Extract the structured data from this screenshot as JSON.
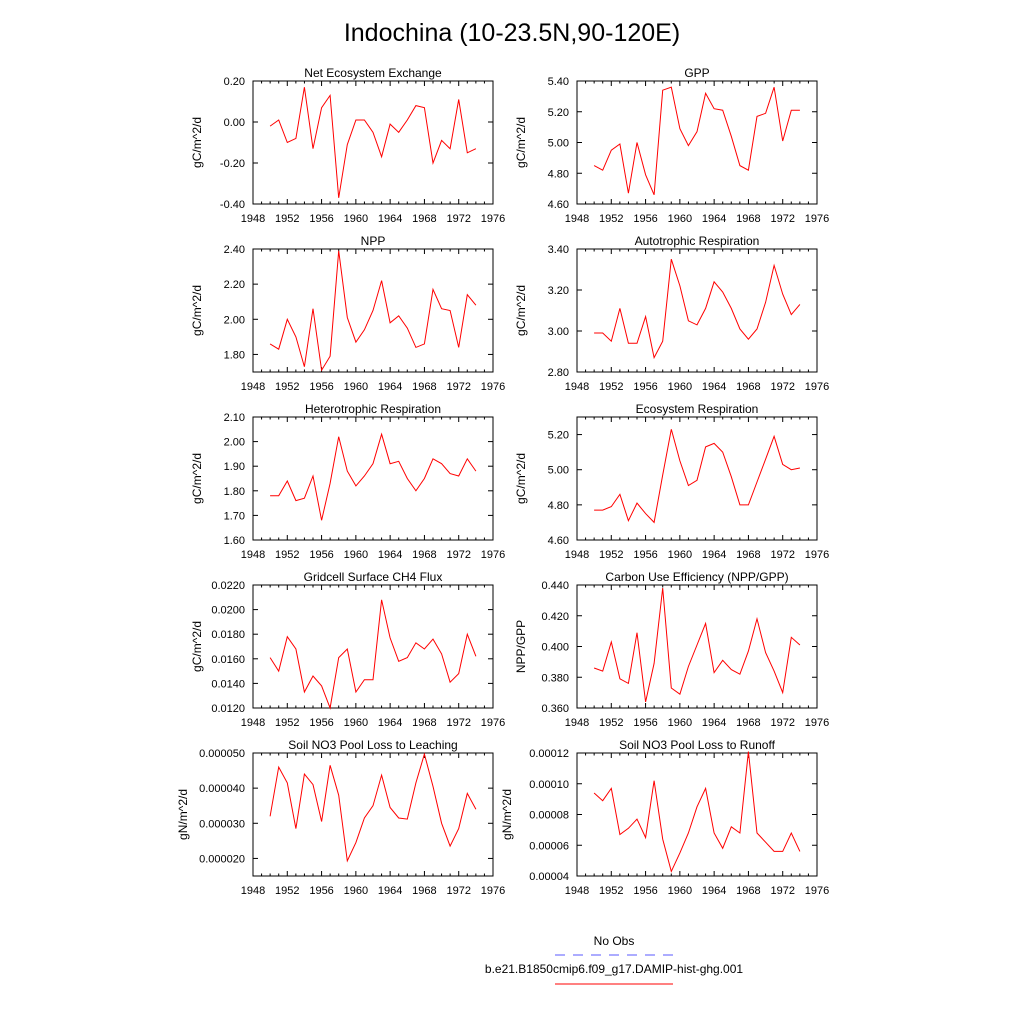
{
  "page": {
    "title": "Indochina (10-23.5N,90-120E)",
    "line_color": "#ff0000",
    "obs_line_color": "#5a5aff",
    "axis_color": "#000000"
  },
  "legend": {
    "items": [
      {
        "label": "No Obs",
        "style": "dashed",
        "color": "#5a5aff"
      },
      {
        "label": "b.e21.B1850cmip6.f09_g17.DAMIP-hist-ghg.001",
        "style": "solid",
        "color": "#ff0000"
      }
    ]
  },
  "chart_data": [
    {
      "type": "line",
      "title": "Net Ecosystem Exchange",
      "ylabel": "gC/m^2/d",
      "xlim": [
        1948,
        1976
      ],
      "xticks": [
        "1948",
        "1952",
        "1956",
        "1960",
        "1964",
        "1968",
        "1972",
        "1976"
      ],
      "ylim": [
        -0.4,
        0.2
      ],
      "yticks": [
        "0.20",
        "0.00",
        "-0.20",
        "-0.40"
      ],
      "ytick_values": [
        0.2,
        0.0,
        -0.2,
        -0.4
      ],
      "x": [
        1950,
        1951,
        1952,
        1953,
        1954,
        1955,
        1956,
        1957,
        1958,
        1959,
        1960,
        1961,
        1962,
        1963,
        1964,
        1965,
        1966,
        1967,
        1968,
        1969,
        1970,
        1971,
        1972,
        1973,
        1974
      ],
      "y": [
        -0.02,
        0.01,
        -0.1,
        -0.08,
        0.17,
        -0.13,
        0.07,
        0.13,
        -0.37,
        -0.11,
        0.01,
        0.01,
        -0.05,
        -0.17,
        -0.01,
        -0.05,
        0.01,
        0.08,
        0.07,
        -0.2,
        -0.09,
        -0.13,
        0.11,
        -0.15,
        -0.13
      ]
    },
    {
      "type": "line",
      "title": "GPP",
      "ylabel": "gC/m^2/d",
      "xlim": [
        1948,
        1976
      ],
      "xticks": [
        "1948",
        "1952",
        "1956",
        "1960",
        "1964",
        "1968",
        "1972",
        "1976"
      ],
      "ylim": [
        4.6,
        5.4
      ],
      "yticks": [
        "5.40",
        "5.20",
        "5.00",
        "4.80",
        "4.60"
      ],
      "ytick_values": [
        5.4,
        5.2,
        5.0,
        4.8,
        4.6
      ],
      "x": [
        1950,
        1951,
        1952,
        1953,
        1954,
        1955,
        1956,
        1957,
        1958,
        1959,
        1960,
        1961,
        1962,
        1963,
        1964,
        1965,
        1966,
        1967,
        1968,
        1969,
        1970,
        1971,
        1972,
        1973,
        1974
      ],
      "y": [
        4.85,
        4.82,
        4.95,
        4.99,
        4.67,
        5.0,
        4.79,
        4.66,
        5.34,
        5.36,
        5.09,
        4.98,
        5.07,
        5.32,
        5.22,
        5.21,
        5.04,
        4.85,
        4.82,
        5.17,
        5.19,
        5.36,
        5.01,
        5.21,
        5.21
      ]
    },
    {
      "type": "line",
      "title": "NPP",
      "ylabel": "gC/m^2/d",
      "xlim": [
        1948,
        1976
      ],
      "xticks": [
        "1948",
        "1952",
        "1956",
        "1960",
        "1964",
        "1968",
        "1972",
        "1976"
      ],
      "ylim": [
        1.7,
        2.4
      ],
      "yticks": [
        "2.40",
        "2.20",
        "2.00",
        "1.80"
      ],
      "ytick_values": [
        2.4,
        2.2,
        2.0,
        1.8
      ],
      "x": [
        1950,
        1951,
        1952,
        1953,
        1954,
        1955,
        1956,
        1957,
        1958,
        1959,
        1960,
        1961,
        1962,
        1963,
        1964,
        1965,
        1966,
        1967,
        1968,
        1969,
        1970,
        1971,
        1972,
        1973,
        1974
      ],
      "y": [
        1.86,
        1.83,
        2.0,
        1.9,
        1.73,
        2.06,
        1.71,
        1.79,
        2.39,
        2.01,
        1.87,
        1.94,
        2.05,
        2.22,
        1.98,
        2.02,
        1.95,
        1.84,
        1.86,
        2.17,
        2.06,
        2.05,
        1.84,
        2.14,
        2.08
      ]
    },
    {
      "type": "line",
      "title": "Autotrophic Respiration",
      "ylabel": "gC/m^2/d",
      "xlim": [
        1948,
        1976
      ],
      "xticks": [
        "1948",
        "1952",
        "1956",
        "1960",
        "1964",
        "1968",
        "1972",
        "1976"
      ],
      "ylim": [
        2.8,
        3.4
      ],
      "yticks": [
        "3.40",
        "3.20",
        "3.00",
        "2.80"
      ],
      "ytick_values": [
        3.4,
        3.2,
        3.0,
        2.8
      ],
      "x": [
        1950,
        1951,
        1952,
        1953,
        1954,
        1955,
        1956,
        1957,
        1958,
        1959,
        1960,
        1961,
        1962,
        1963,
        1964,
        1965,
        1966,
        1967,
        1968,
        1969,
        1970,
        1971,
        1972,
        1973,
        1974
      ],
      "y": [
        2.99,
        2.99,
        2.95,
        3.11,
        2.94,
        2.94,
        3.07,
        2.87,
        2.95,
        3.35,
        3.22,
        3.05,
        3.03,
        3.11,
        3.24,
        3.19,
        3.11,
        3.01,
        2.96,
        3.01,
        3.14,
        3.32,
        3.18,
        3.08,
        3.13
      ]
    },
    {
      "type": "line",
      "title": "Heterotrophic Respiration",
      "ylabel": "gC/m^2/d",
      "xlim": [
        1948,
        1976
      ],
      "xticks": [
        "1948",
        "1952",
        "1956",
        "1960",
        "1964",
        "1968",
        "1972",
        "1976"
      ],
      "ylim": [
        1.6,
        2.1
      ],
      "yticks": [
        "2.10",
        "2.00",
        "1.90",
        "1.80",
        "1.70",
        "1.60"
      ],
      "ytick_values": [
        2.1,
        2.0,
        1.9,
        1.8,
        1.7,
        1.6
      ],
      "x": [
        1950,
        1951,
        1952,
        1953,
        1954,
        1955,
        1956,
        1957,
        1958,
        1959,
        1960,
        1961,
        1962,
        1963,
        1964,
        1965,
        1966,
        1967,
        1968,
        1969,
        1970,
        1971,
        1972,
        1973,
        1974
      ],
      "y": [
        1.78,
        1.78,
        1.84,
        1.76,
        1.77,
        1.86,
        1.68,
        1.83,
        2.02,
        1.88,
        1.82,
        1.86,
        1.91,
        2.03,
        1.91,
        1.92,
        1.85,
        1.8,
        1.85,
        1.93,
        1.91,
        1.87,
        1.86,
        1.93,
        1.88
      ]
    },
    {
      "type": "line",
      "title": "Ecosystem Respiration",
      "ylabel": "gC/m^2/d",
      "xlim": [
        1948,
        1976
      ],
      "xticks": [
        "1948",
        "1952",
        "1956",
        "1960",
        "1964",
        "1968",
        "1972",
        "1976"
      ],
      "ylim": [
        4.6,
        5.3
      ],
      "yticks": [
        "5.20",
        "5.00",
        "4.80",
        "4.60"
      ],
      "ytick_values": [
        5.2,
        5.0,
        4.8,
        4.6
      ],
      "x": [
        1950,
        1951,
        1952,
        1953,
        1954,
        1955,
        1956,
        1957,
        1958,
        1959,
        1960,
        1961,
        1962,
        1963,
        1964,
        1965,
        1966,
        1967,
        1968,
        1969,
        1970,
        1971,
        1972,
        1973,
        1974
      ],
      "y": [
        4.77,
        4.77,
        4.79,
        4.86,
        4.71,
        4.81,
        4.75,
        4.7,
        4.97,
        5.23,
        5.05,
        4.91,
        4.94,
        5.13,
        5.15,
        5.1,
        4.96,
        4.8,
        4.8,
        4.93,
        5.06,
        5.19,
        5.03,
        5.0,
        5.01
      ]
    },
    {
      "type": "line",
      "title": "Gridcell Surface CH4 Flux",
      "ylabel": "gC/m^2/d",
      "xlim": [
        1948,
        1976
      ],
      "xticks": [
        "1948",
        "1952",
        "1956",
        "1960",
        "1964",
        "1968",
        "1972",
        "1976"
      ],
      "ylim": [
        0.012,
        0.022
      ],
      "yticks": [
        "0.0220",
        "0.0200",
        "0.0180",
        "0.0160",
        "0.0140",
        "0.0120"
      ],
      "ytick_values": [
        0.022,
        0.02,
        0.018,
        0.016,
        0.014,
        0.012
      ],
      "x": [
        1950,
        1951,
        1952,
        1953,
        1954,
        1955,
        1956,
        1957,
        1958,
        1959,
        1960,
        1961,
        1962,
        1963,
        1964,
        1965,
        1966,
        1967,
        1968,
        1969,
        1970,
        1971,
        1972,
        1973,
        1974
      ],
      "y": [
        0.0161,
        0.015,
        0.0178,
        0.0168,
        0.0133,
        0.0146,
        0.0138,
        0.012,
        0.0161,
        0.0168,
        0.0133,
        0.0143,
        0.0143,
        0.0208,
        0.0177,
        0.0158,
        0.0161,
        0.0173,
        0.0168,
        0.0176,
        0.0164,
        0.0141,
        0.0148,
        0.018,
        0.0162
      ]
    },
    {
      "type": "line",
      "title": "Carbon Use Efficiency (NPP/GPP)",
      "ylabel": "NPP/GPP",
      "xlim": [
        1948,
        1976
      ],
      "xticks": [
        "1948",
        "1952",
        "1956",
        "1960",
        "1964",
        "1968",
        "1972",
        "1976"
      ],
      "ylim": [
        0.36,
        0.44
      ],
      "yticks": [
        "0.440",
        "0.420",
        "0.400",
        "0.380",
        "0.360"
      ],
      "ytick_values": [
        0.44,
        0.42,
        0.4,
        0.38,
        0.36
      ],
      "x": [
        1950,
        1951,
        1952,
        1953,
        1954,
        1955,
        1956,
        1957,
        1958,
        1959,
        1960,
        1961,
        1962,
        1963,
        1964,
        1965,
        1966,
        1967,
        1968,
        1969,
        1970,
        1971,
        1972,
        1973,
        1974
      ],
      "y": [
        0.386,
        0.384,
        0.403,
        0.379,
        0.376,
        0.409,
        0.364,
        0.389,
        0.438,
        0.373,
        0.369,
        0.387,
        0.401,
        0.415,
        0.383,
        0.391,
        0.385,
        0.382,
        0.397,
        0.418,
        0.396,
        0.384,
        0.37,
        0.406,
        0.401
      ]
    },
    {
      "type": "line",
      "title": "Soil NO3 Pool Loss to Leaching",
      "ylabel": "gN/m^2/d",
      "xlim": [
        1948,
        1976
      ],
      "xticks": [
        "1948",
        "1952",
        "1956",
        "1960",
        "1964",
        "1968",
        "1972",
        "1976"
      ],
      "ylim": [
        1.5e-05,
        5e-05
      ],
      "yticks": [
        "0.000050",
        "0.000040",
        "0.000030",
        "0.000020"
      ],
      "ytick_values": [
        5e-05,
        4e-05,
        3e-05,
        2e-05
      ],
      "x": [
        1950,
        1951,
        1952,
        1953,
        1954,
        1955,
        1956,
        1957,
        1958,
        1959,
        1960,
        1961,
        1962,
        1963,
        1964,
        1965,
        1966,
        1967,
        1968,
        1969,
        1970,
        1971,
        1972,
        1973,
        1974
      ],
      "y": [
        3.2e-05,
        4.6e-05,
        4.15e-05,
        2.85e-05,
        4.4e-05,
        4.1e-05,
        3.05e-05,
        4.65e-05,
        3.8e-05,
        1.93e-05,
        2.45e-05,
        3.15e-05,
        3.5e-05,
        4.37e-05,
        3.45e-05,
        3.15e-05,
        3.12e-05,
        4.15e-05,
        4.97e-05,
        4.05e-05,
        3e-05,
        2.35e-05,
        2.85e-05,
        3.85e-05,
        3.4e-05
      ]
    },
    {
      "type": "line",
      "title": "Soil NO3 Pool Loss to Runoff",
      "ylabel": "gN/m^2/d",
      "xlim": [
        1948,
        1976
      ],
      "xticks": [
        "1948",
        "1952",
        "1956",
        "1960",
        "1964",
        "1968",
        "1972",
        "1976"
      ],
      "ylim": [
        4e-05,
        0.00012
      ],
      "yticks": [
        "0.00012",
        "0.00010",
        "0.00008",
        "0.00006",
        "0.00004"
      ],
      "ytick_values": [
        0.00012,
        0.0001,
        8e-05,
        6e-05,
        4e-05
      ],
      "x": [
        1950,
        1951,
        1952,
        1953,
        1954,
        1955,
        1956,
        1957,
        1958,
        1959,
        1960,
        1961,
        1962,
        1963,
        1964,
        1965,
        1966,
        1967,
        1968,
        1969,
        1970,
        1971,
        1972,
        1973,
        1974
      ],
      "y": [
        9.4e-05,
        8.9e-05,
        9.7e-05,
        6.7e-05,
        7.1e-05,
        7.7e-05,
        6.5e-05,
        0.000102,
        6.4e-05,
        4.3e-05,
        5.5e-05,
        6.8e-05,
        8.5e-05,
        9.7e-05,
        6.8e-05,
        5.8e-05,
        7.2e-05,
        6.8e-05,
        0.000121,
        6.8e-05,
        6.2e-05,
        5.6e-05,
        5.6e-05,
        6.8e-05,
        5.6e-05
      ]
    }
  ]
}
